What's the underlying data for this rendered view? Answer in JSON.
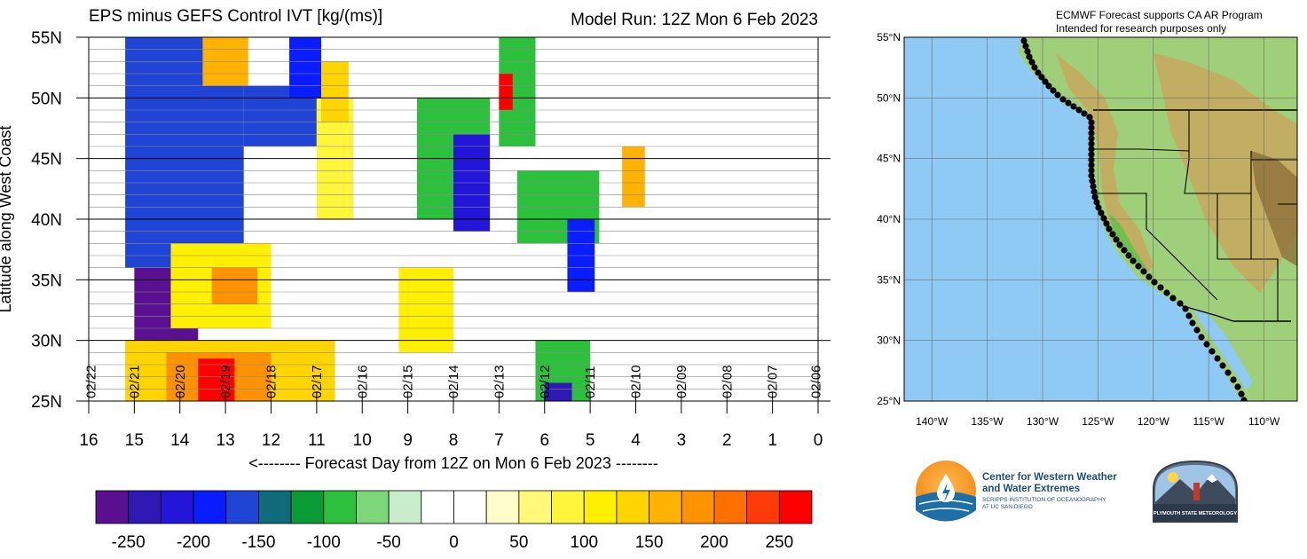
{
  "chart_data": [
    {
      "type": "heatmap",
      "title": "EPS minus GEFS Control IVT [kg/(ms)]",
      "subtitle": "Model Run: 12Z Mon 6 Feb 2023",
      "xlabel": "<-------- Forecast Day from 12Z on Mon 6 Feb 2023 --------",
      "ylabel": "Latitude along West Coast",
      "x_ticks": [
        16,
        15,
        14,
        13,
        12,
        11,
        10,
        9,
        8,
        7,
        6,
        5,
        4,
        3,
        2,
        1,
        0
      ],
      "xlim": [
        16,
        0
      ],
      "y_ticks": [
        "55N",
        "50N",
        "45N",
        "40N",
        "35N",
        "30N",
        "25N"
      ],
      "y_tick_values": [
        55,
        50,
        45,
        40,
        35,
        30,
        25
      ],
      "ylim": [
        25,
        55
      ],
      "date_labels": [
        {
          "day": 15.95,
          "label": "02/22"
        },
        {
          "day": 15.0,
          "label": "02/21"
        },
        {
          "day": 14.0,
          "label": "02/20"
        },
        {
          "day": 13.0,
          "label": "02/19"
        },
        {
          "day": 12.0,
          "label": "02/18"
        },
        {
          "day": 11.0,
          "label": "02/17"
        },
        {
          "day": 10.0,
          "label": "02/16"
        },
        {
          "day": 9.0,
          "label": "02/15"
        },
        {
          "day": 8.0,
          "label": "02/14"
        },
        {
          "day": 7.0,
          "label": "02/13"
        },
        {
          "day": 6.0,
          "label": "02/12"
        },
        {
          "day": 5.0,
          "label": "02/11"
        },
        {
          "day": 4.0,
          "label": "02/10"
        },
        {
          "day": 3.0,
          "label": "02/09"
        },
        {
          "day": 2.0,
          "label": "02/08"
        },
        {
          "day": 1.0,
          "label": "02/07"
        },
        {
          "day": 0.05,
          "label": "02/06"
        }
      ],
      "regions": [
        {
          "day": [
            15.0,
            13.6
          ],
          "lat": [
            29,
            53
          ],
          "value": -300
        },
        {
          "day": [
            15.2,
            12.6
          ],
          "lat": [
            36,
            55
          ],
          "value": -175
        },
        {
          "day": [
            12.6,
            11.0
          ],
          "lat": [
            46,
            51
          ],
          "value": -175
        },
        {
          "day": [
            11.6,
            10.9
          ],
          "lat": [
            50,
            55
          ],
          "value": -200
        },
        {
          "day": [
            8.8,
            7.2
          ],
          "lat": [
            40,
            50
          ],
          "value": -100
        },
        {
          "day": [
            7.0,
            6.2
          ],
          "lat": [
            46,
            55
          ],
          "value": -100
        },
        {
          "day": [
            8.0,
            7.2
          ],
          "lat": [
            39,
            47
          ],
          "value": -225
        },
        {
          "day": [
            6.6,
            4.8
          ],
          "lat": [
            38,
            44
          ],
          "value": -100
        },
        {
          "day": [
            5.5,
            4.9
          ],
          "lat": [
            34,
            40
          ],
          "value": -200
        },
        {
          "day": [
            6.2,
            5.0
          ],
          "lat": [
            25,
            30
          ],
          "value": -100
        },
        {
          "day": [
            6.0,
            5.4
          ],
          "lat": [
            25,
            26.5
          ],
          "value": -250
        },
        {
          "day": [
            14.2,
            12.0
          ],
          "lat": [
            31,
            38
          ],
          "value": 100
        },
        {
          "day": [
            13.3,
            12.3
          ],
          "lat": [
            33,
            36
          ],
          "value": 175
        },
        {
          "day": [
            15.2,
            10.6
          ],
          "lat": [
            25,
            30
          ],
          "value": 125
        },
        {
          "day": [
            14.3,
            12.0
          ],
          "lat": [
            25,
            29
          ],
          "value": 175
        },
        {
          "day": [
            13.6,
            12.8
          ],
          "lat": [
            25,
            28.5
          ],
          "value": 275
        },
        {
          "day": [
            11.0,
            10.2
          ],
          "lat": [
            40,
            50
          ],
          "value": 75
        },
        {
          "day": [
            10.9,
            10.3
          ],
          "lat": [
            48,
            53
          ],
          "value": 125
        },
        {
          "day": [
            13.5,
            12.5
          ],
          "lat": [
            51,
            55
          ],
          "value": 150
        },
        {
          "day": [
            9.2,
            8.0
          ],
          "lat": [
            29,
            36
          ],
          "value": 100
        },
        {
          "day": [
            7.0,
            6.7
          ],
          "lat": [
            49,
            52
          ],
          "value": 275
        },
        {
          "day": [
            4.3,
            3.8
          ],
          "lat": [
            41,
            46
          ],
          "value": 150
        }
      ],
      "colorbar": {
        "ticks": [
          "-250",
          "-200",
          "-150",
          "-100",
          "-50",
          "0",
          "50",
          "100",
          "150",
          "200",
          "250"
        ],
        "colors": [
          "#5b0f91",
          "#2f18b3",
          "#2416d9",
          "#0a1dff",
          "#1f44d6",
          "#0f6a7a",
          "#0a9a36",
          "#2cc03c",
          "#7ed67a",
          "#c9ecca",
          "#ffffff",
          "#ffffff",
          "#fffdca",
          "#fff878",
          "#fff53a",
          "#fff000",
          "#ffd500",
          "#ffb300",
          "#ff9200",
          "#ff7000",
          "#ff3b0a",
          "#ff0000"
        ]
      }
    },
    {
      "type": "map",
      "notes": [
        "ECMWF Forecast supports CA AR Program",
        "Intended for research purposes only"
      ],
      "lat_ticks": [
        "55°N",
        "50°N",
        "45°N",
        "40°N",
        "35°N",
        "30°N",
        "25°N"
      ],
      "lat_values": [
        55,
        50,
        45,
        40,
        35,
        30,
        25
      ],
      "lon_ticks": [
        "140°W",
        "135°W",
        "130°W",
        "125°W",
        "120°W",
        "115°W",
        "110°W"
      ],
      "lon_values": [
        -140,
        -135,
        -130,
        -125,
        -120,
        -115,
        -110
      ],
      "colors": {
        "ocean": "#8fcaf5",
        "land": "#9fcf78",
        "terrain": "#c8a85e",
        "mountain": "#8b6b35"
      }
    }
  ],
  "logos": {
    "cw3e": {
      "line1": "Center for Western Weather",
      "line2": "and Water Extremes",
      "line3": "SCRIPPS INSTITUTION OF OCEANOGRAPHY",
      "line4": "AT UC SAN DIEGO"
    },
    "psu": {
      "text": "PLYMOUTH STATE METEOROLOGY"
    }
  }
}
